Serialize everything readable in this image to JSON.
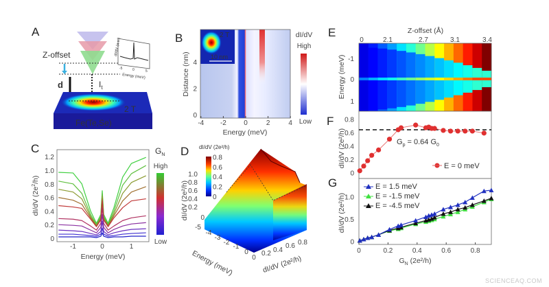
{
  "watermark": "SCIENCEAQ.COM",
  "panels": {
    "A": {
      "label": "A",
      "z_offset": "Z-offset",
      "d": "d",
      "it_main": "I",
      "it_sub": "t",
      "field": "2 T",
      "material": "Fe(Te,Se)",
      "inset_ylabel": "dI/dV (a.u.)",
      "inset_xlabel": "Energy (meV)",
      "inset_ticks": [
        "-5",
        "0",
        "5"
      ]
    },
    "B": {
      "label": "B"
    },
    "C": {
      "label": "C"
    },
    "D": {
      "label": "D"
    },
    "E": {
      "label": "E"
    },
    "F": {
      "label": "F"
    },
    "G": {
      "label": "G"
    }
  },
  "chart_data": [
    {
      "panel": "B",
      "type": "heatmap",
      "xlabel": "Energy (meV)",
      "ylabel": "Distance (nm)",
      "xticks": [
        "-4",
        "-2",
        "0",
        "2",
        "4"
      ],
      "yticks": [
        "0",
        "2",
        "4"
      ],
      "xlim": [
        -4,
        4
      ],
      "ylim": [
        0,
        6.4
      ],
      "colorbar": {
        "title": "dI/dV",
        "high": "High",
        "low": "Low",
        "colors": [
          "#1f2fd0",
          "#ffffff",
          "#d01818"
        ]
      },
      "inset": {
        "field": "2 T",
        "scalebar": "10 nm"
      }
    },
    {
      "panel": "C",
      "type": "line",
      "xlabel": "Energy (meV)",
      "ylabel_main": "dI/dV (2e",
      "ylabel_sup": "2",
      "ylabel_end": "/h)",
      "xticks": [
        "-1",
        "0",
        "1"
      ],
      "yticks": [
        "0",
        "0.2",
        "0.4",
        "0.6",
        "0.8",
        "1.0",
        "1.2"
      ],
      "xlim": [
        -1.55,
        1.6
      ],
      "ylim": [
        -0.05,
        1.26
      ],
      "colorbar": {
        "title_main": "G",
        "title_sub": "N",
        "high": "High",
        "low": "Low",
        "colors": [
          "#33cc33",
          "#d03030",
          "#8a2ad0",
          "#2020d0"
        ]
      },
      "x": [
        -1.5,
        -1,
        -0.7,
        -0.4,
        -0.2,
        -0.05,
        0,
        0.05,
        0.2,
        0.4,
        0.7,
        1,
        1.5
      ],
      "series": [
        {
          "values": [
            0.97,
            0.96,
            0.8,
            0.4,
            0.22,
            0.35,
            0.7,
            0.35,
            0.22,
            0.45,
            0.9,
            1.1,
            1.19
          ]
        },
        {
          "values": [
            0.84,
            0.8,
            0.66,
            0.35,
            0.2,
            0.32,
            0.66,
            0.32,
            0.2,
            0.4,
            0.78,
            0.95,
            1.07
          ]
        },
        {
          "values": [
            0.72,
            0.68,
            0.58,
            0.32,
            0.19,
            0.3,
            0.62,
            0.3,
            0.19,
            0.36,
            0.66,
            0.82,
            0.92
          ]
        },
        {
          "values": [
            0.6,
            0.56,
            0.5,
            0.3,
            0.18,
            0.28,
            0.58,
            0.28,
            0.18,
            0.33,
            0.55,
            0.68,
            0.76
          ]
        },
        {
          "values": [
            0.48,
            0.46,
            0.44,
            0.28,
            0.17,
            0.27,
            0.55,
            0.27,
            0.17,
            0.3,
            0.45,
            0.55,
            0.58
          ]
        },
        {
          "values": [
            0.29,
            0.28,
            0.26,
            0.18,
            0.12,
            0.22,
            0.45,
            0.22,
            0.12,
            0.18,
            0.26,
            0.3,
            0.33
          ]
        },
        {
          "values": [
            0.2,
            0.19,
            0.18,
            0.12,
            0.08,
            0.16,
            0.35,
            0.16,
            0.08,
            0.13,
            0.18,
            0.21,
            0.23
          ]
        },
        {
          "values": [
            0.12,
            0.11,
            0.1,
            0.07,
            0.05,
            0.1,
            0.25,
            0.1,
            0.05,
            0.08,
            0.11,
            0.13,
            0.14
          ]
        },
        {
          "values": [
            0.06,
            0.06,
            0.05,
            0.04,
            0.03,
            0.06,
            0.15,
            0.06,
            0.03,
            0.04,
            0.06,
            0.07,
            0.08
          ]
        },
        {
          "values": [
            0.02,
            0.02,
            0.02,
            0.02,
            0.01,
            0.03,
            0.08,
            0.03,
            0.01,
            0.02,
            0.02,
            0.03,
            0.03
          ]
        }
      ]
    },
    {
      "panel": "D",
      "type": "area",
      "zlabel": "dI/dV (2e²/h)",
      "energy_label": "Energy (meV)",
      "x_label": "dI/dV (2e²/h)",
      "zticks": [
        "-5",
        "0",
        "0.2",
        "0.4",
        "0.6",
        "0.8",
        "1.0"
      ],
      "energy_ticks": [
        "-4",
        "-3",
        "-2",
        "-1",
        "0"
      ],
      "x_ticks": [
        "0",
        "0.2",
        "0.4",
        "0.6",
        "0.8"
      ],
      "colorbar": {
        "title": "dI/dV (2e²/h)",
        "ticks": [
          "0",
          "0.2",
          "0.4",
          "0.6",
          "0.8"
        ]
      }
    },
    {
      "panel": "E",
      "type": "heatmap",
      "xlabel": "Z-offset (Å)",
      "ylabel": "Energy (meV)",
      "xticks": [
        "0",
        "2.1",
        "2.7",
        "3.1",
        "3.4"
      ],
      "yticks": [
        "-1",
        "0",
        "1"
      ]
    },
    {
      "panel": "F",
      "type": "scatter",
      "ylabel": "dI/dV (2e²/h)",
      "yticks": [
        "0",
        "0.2",
        "0.4",
        "0.6",
        "0.8"
      ],
      "xlim": [
        0,
        0.91
      ],
      "ylim": [
        -0.085,
        0.93
      ],
      "reference_line": 0.64,
      "annotation": {
        "main": "G",
        "sub1": "p",
        "mid": " = 0.64 G",
        "sub2": "0"
      },
      "series": [
        {
          "name": "E = 0 meV",
          "color": "#e03030",
          "x": [
            0.006,
            0.033,
            0.06,
            0.088,
            0.135,
            0.21,
            0.27,
            0.29,
            0.39,
            0.46,
            0.48,
            0.5,
            0.52,
            0.58,
            0.63,
            0.68,
            0.73,
            0.78,
            0.86
          ],
          "y": [
            0.03,
            0.1,
            0.18,
            0.26,
            0.34,
            0.5,
            0.64,
            0.67,
            0.71,
            0.67,
            0.68,
            0.66,
            0.66,
            0.63,
            0.62,
            0.62,
            0.62,
            0.62,
            0.59
          ]
        }
      ]
    },
    {
      "panel": "G",
      "type": "line",
      "xlabel_main": "G",
      "xlabel_sub": "N",
      "xlabel_end": " (2e²/h)",
      "ylabel": "dI/dV (2e²/h)",
      "xticks": [
        "0",
        "0.2",
        "0.4",
        "0.6",
        "0.8"
      ],
      "yticks": [
        "0",
        "0.5",
        "1.0"
      ],
      "xlim": [
        0,
        0.91
      ],
      "ylim": [
        -0.01,
        1.41
      ],
      "x": [
        0.006,
        0.033,
        0.06,
        0.088,
        0.135,
        0.21,
        0.27,
        0.29,
        0.39,
        0.46,
        0.48,
        0.5,
        0.52,
        0.58,
        0.63,
        0.68,
        0.73,
        0.78,
        0.86,
        0.91
      ],
      "series": [
        {
          "name": "E =  1.5 meV",
          "color": "#2030c0",
          "y": [
            0.02,
            0.05,
            0.08,
            0.1,
            0.15,
            0.27,
            0.35,
            0.37,
            0.47,
            0.55,
            0.58,
            0.6,
            0.62,
            0.72,
            0.77,
            0.82,
            0.88,
            0.98,
            1.13,
            1.15
          ]
        },
        {
          "name": "E = -1.5 meV",
          "color": "#40e040",
          "y": [
            0.02,
            0.05,
            0.08,
            0.1,
            0.15,
            0.24,
            0.28,
            0.3,
            0.39,
            0.44,
            0.46,
            0.48,
            0.5,
            0.56,
            0.61,
            0.66,
            0.72,
            0.78,
            0.88,
            0.95
          ]
        },
        {
          "name": "E = -4.5 meV",
          "color": "#111111",
          "y": [
            0.02,
            0.05,
            0.08,
            0.1,
            0.15,
            0.25,
            0.3,
            0.32,
            0.41,
            0.47,
            0.49,
            0.51,
            0.54,
            0.62,
            0.66,
            0.72,
            0.76,
            0.82,
            0.91,
            0.97
          ]
        }
      ]
    }
  ]
}
